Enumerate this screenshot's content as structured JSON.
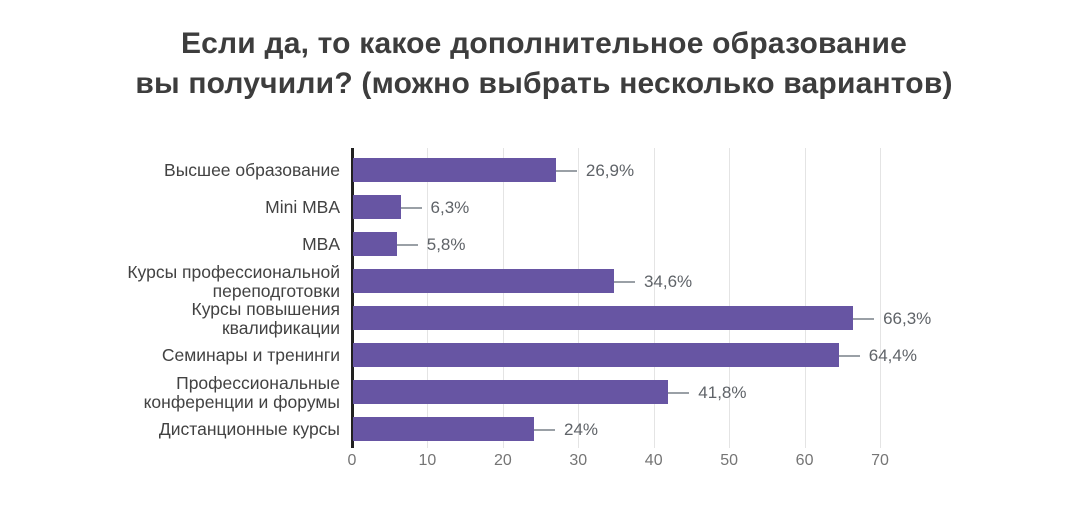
{
  "chart_data": {
    "type": "bar",
    "orientation": "horizontal",
    "title": "Если да, то какое дополнительное образование вы получили? (можно выбрать несколько вариантов)",
    "title_lines": [
      "Если да, то какое дополнительное образование",
      "вы получили? (можно выбрать несколько вариантов)"
    ],
    "categories": [
      "Высшее образование",
      "Mini MBA",
      "MBA",
      "Курсы профессиональной\nпереподготовки",
      "Курсы повышения\nквалификации",
      "Семинары и тренинги",
      "Профессиональные\nконференции и форумы",
      "Дистанционные курсы"
    ],
    "values": [
      26.9,
      6.3,
      5.8,
      34.6,
      66.3,
      64.4,
      41.8,
      24
    ],
    "value_labels": [
      "26,9%",
      "6,3%",
      "5,8%",
      "34,6%",
      "66,3%",
      "64,4%",
      "41,8%",
      "24%"
    ],
    "xlabel": "",
    "ylabel": "",
    "xlim": [
      0,
      70
    ],
    "x_ticks": [
      "0",
      "10",
      "20",
      "30",
      "40",
      "50",
      "60",
      "70"
    ],
    "grid": true,
    "legend": false,
    "colors": {
      "bar": "#6755a3",
      "axis_line": "#212121",
      "gridline": "#e4e4e4",
      "title_text": "#3d3d3d",
      "category_text": "#424242",
      "value_text": "#5f6368",
      "leader_line": "#9aa0a6",
      "tick_text": "#757575",
      "background": "#ffffff"
    }
  }
}
